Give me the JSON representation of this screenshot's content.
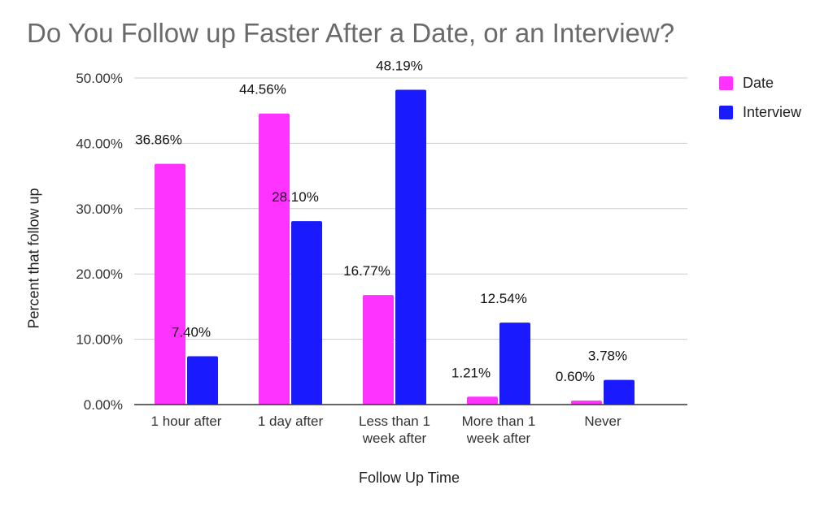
{
  "chart_data": {
    "type": "bar",
    "title": "Do You Follow up Faster After a Date, or an Interview?",
    "xlabel": "Follow Up Time",
    "ylabel": "Percent that follow up",
    "categories": [
      [
        "1 hour after"
      ],
      [
        "1 day after"
      ],
      [
        "Less than 1",
        "week after"
      ],
      [
        "More than 1",
        "week after"
      ],
      [
        "Never"
      ]
    ],
    "series": [
      {
        "name": "Date",
        "color": "#ff33ff",
        "values": [
          36.86,
          44.56,
          16.77,
          1.21,
          0.6
        ],
        "labels": [
          "36.86%",
          "44.56%",
          "16.77%",
          "1.21%",
          "0.60%"
        ]
      },
      {
        "name": "Interview",
        "color": "#1a1aff",
        "values": [
          7.4,
          28.1,
          48.19,
          12.54,
          3.78
        ],
        "labels": [
          "7.40%",
          "28.10%",
          "48.19%",
          "12.54%",
          "3.78%"
        ]
      }
    ],
    "ylim": [
      0,
      50
    ],
    "yticks": [
      0,
      10,
      20,
      30,
      40,
      50
    ],
    "ytick_labels": [
      "0.00%",
      "10.00%",
      "20.00%",
      "30.00%",
      "40.00%",
      "50.00%"
    ],
    "grid": true,
    "legend_position": "top-right"
  }
}
